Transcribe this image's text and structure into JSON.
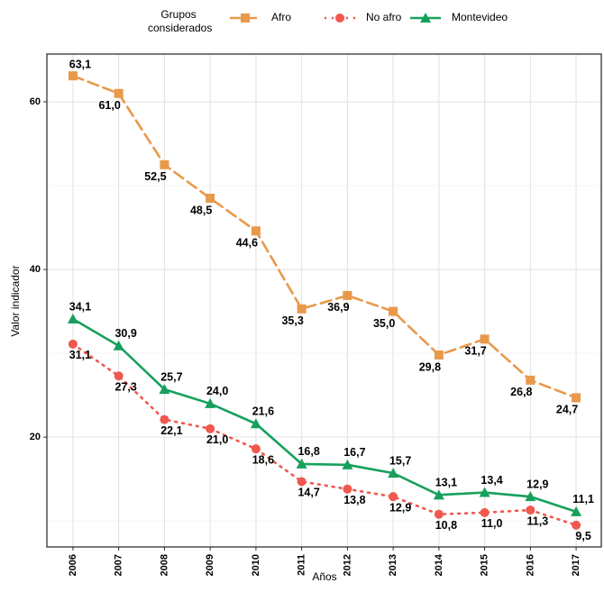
{
  "chart_data": {
    "type": "line",
    "legend_title": "Grupos considerados",
    "legend_position": "top",
    "x_label": "Años",
    "y_label": "Valor indicador",
    "x": [
      2006,
      2007,
      2008,
      2009,
      2010,
      2011,
      2012,
      2013,
      2014,
      2015,
      2016,
      2017
    ],
    "xlim": [
      2005.43,
      2017.55
    ],
    "xticks": [
      2006,
      2007,
      2008,
      2009,
      2010,
      2011,
      2012,
      2013,
      2014,
      2015,
      2016,
      2017
    ],
    "ylim": [
      6.9,
      65.7
    ],
    "yticks": [
      20,
      40,
      60
    ],
    "grid": true,
    "series": [
      {
        "name": "Afro",
        "color": "#E8994A",
        "dash": "dashed",
        "marker": "square",
        "values": [
          63.1,
          61.0,
          52.5,
          48.5,
          44.6,
          35.3,
          36.9,
          35.0,
          29.8,
          31.7,
          26.8,
          24.7
        ],
        "value_labels": [
          "63,1",
          "61,0",
          "52,5",
          "48,5",
          "44,6",
          "35,3",
          "36,9",
          "35,0",
          "29,8",
          "31,7",
          "26,8",
          "24,7"
        ]
      },
      {
        "name": "No afro",
        "color": "#F0584E",
        "dash": "dotted",
        "marker": "circle",
        "values": [
          31.1,
          27.3,
          22.1,
          21.0,
          18.6,
          14.7,
          13.8,
          12.9,
          10.8,
          11.0,
          11.3,
          9.5
        ],
        "value_labels": [
          "31,1",
          "27,3",
          "22,1",
          "21,0",
          "18,6",
          "14,7",
          "13,8",
          "12,9",
          "10,8",
          "11,0",
          "11,3",
          "9,5"
        ]
      },
      {
        "name": "Montevideo",
        "color": "#17A05D",
        "dash": "solid",
        "marker": "triangle",
        "values": [
          34.1,
          30.9,
          25.7,
          24.0,
          21.6,
          16.8,
          16.7,
          15.7,
          13.1,
          13.4,
          12.9,
          11.1
        ],
        "value_labels": [
          "34,1",
          "30,9",
          "25,7",
          "24,0",
          "21,6",
          "16,8",
          "16,7",
          "15,7",
          "13,1",
          "13,4",
          "12,9",
          "11,1"
        ]
      }
    ]
  }
}
